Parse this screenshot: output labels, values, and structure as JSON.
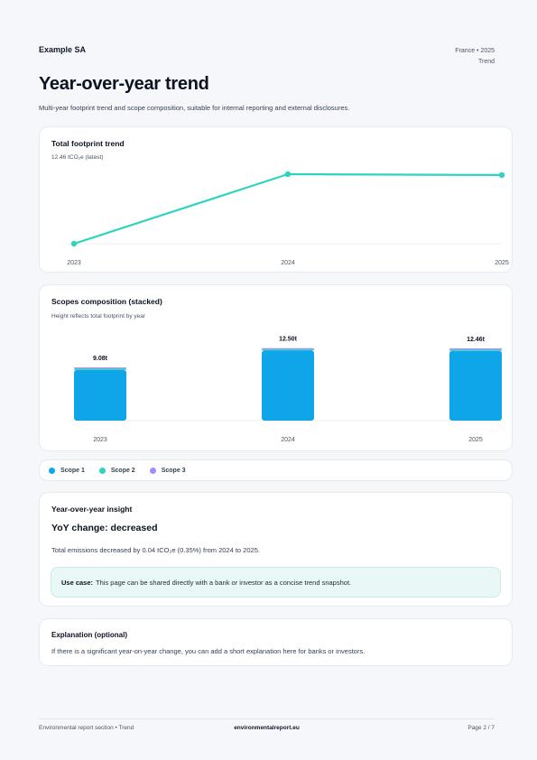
{
  "header": {
    "company": "Example SA",
    "meta_line1": "France • 2025",
    "meta_line2": "Trend"
  },
  "page": {
    "title": "Year-over-year trend",
    "subtitle": "Multi-year footprint trend and scope composition, suitable for internal reporting and external disclosures."
  },
  "trend": {
    "title": "Total footprint trend",
    "latest_label": "12.46 tCO₂e (latest)"
  },
  "stack": {
    "title": "Scopes composition (stacked)",
    "subtitle": "Height reflects total footprint by year"
  },
  "legend": [
    {
      "label": "Scope 1",
      "color": "#0ea5e9"
    },
    {
      "label": "Scope 2",
      "color": "#2dd4bf"
    },
    {
      "label": "Scope 3",
      "color": "#a78bfa"
    }
  ],
  "insight": {
    "title": "Year-over-year insight",
    "headline": "YoY change: decreased",
    "text": "Total emissions decreased by 0.04 tCO₂e (0.35%) from 2024 to 2025.",
    "usecase_label": "Use case:",
    "usecase_text": "This page can be shared directly with a bank or investor as a concise trend snapshot."
  },
  "explanation": {
    "title": "Explanation (optional)",
    "text": "If there is a significant year-on-year change, you can add a short explanation here for banks or investors."
  },
  "footer": {
    "left": "Environmental report section • Trend",
    "center": "environmentalreport.eu",
    "right": "Page 2 / 7"
  },
  "colors": {
    "line": "#2dd4bf",
    "scope1": "#0ea5e9",
    "scope2": "#2dd4bf",
    "scope3": "#a78bfa"
  },
  "chart_data": [
    {
      "type": "line",
      "title": "Total footprint trend",
      "x": [
        "2023",
        "2024",
        "2025"
      ],
      "series": [
        {
          "values": [
            9.08,
            12.5,
            12.46
          ]
        }
      ]
    },
    {
      "type": "bar",
      "title": "Scopes composition (stacked)",
      "categories": [
        "2023",
        "2024",
        "2025"
      ],
      "series": [
        {
          "name": "Scope 1",
          "values": [
            8.9,
            12.3,
            12.25
          ]
        },
        {
          "name": "Scope 2",
          "values": [
            0.13,
            0.15,
            0.15
          ]
        },
        {
          "name": "Scope 3",
          "values": [
            0.05,
            0.05,
            0.06
          ]
        }
      ],
      "data_labels": [
        "9.08t",
        "12.50t",
        "12.46t"
      ]
    }
  ]
}
